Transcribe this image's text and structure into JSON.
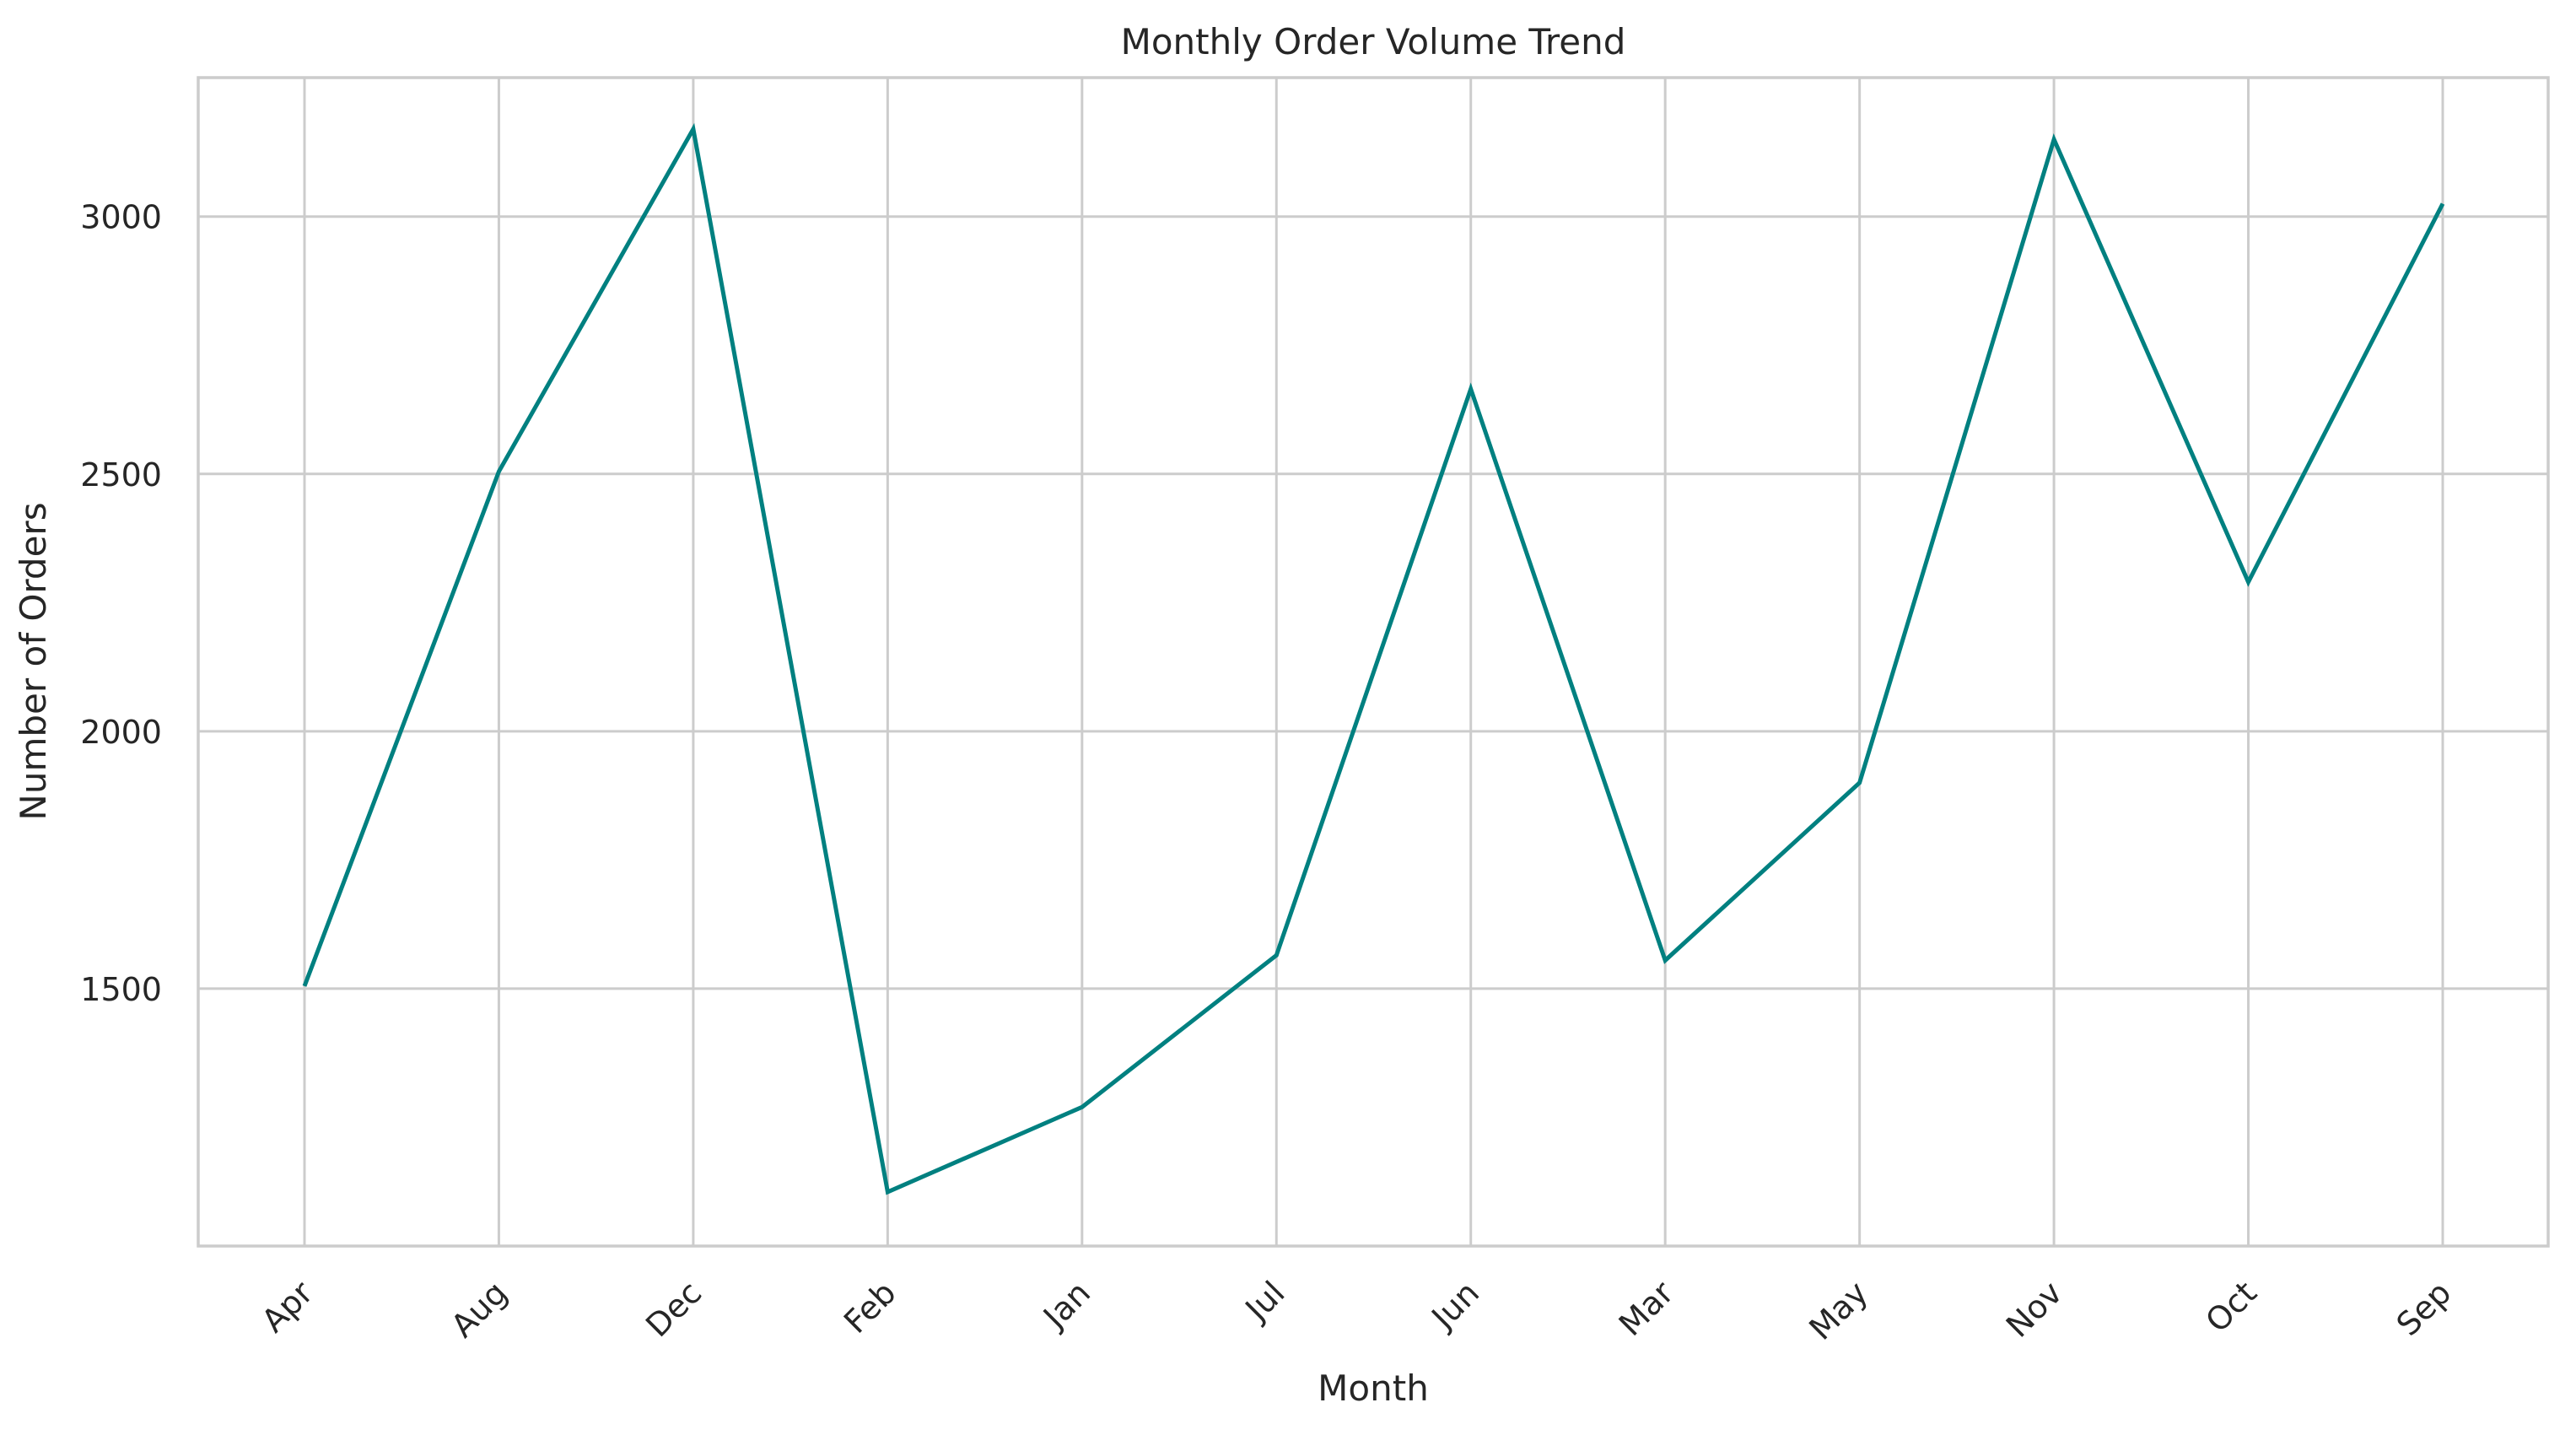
{
  "chart_data": {
    "type": "line",
    "title": "Monthly Order Volume Trend",
    "xlabel": "Month",
    "ylabel": "Number of Orders",
    "categories": [
      "Apr",
      "Aug",
      "Dec",
      "Feb",
      "Jan",
      "Jul",
      "Jun",
      "Mar",
      "May",
      "Nov",
      "Oct",
      "Sep"
    ],
    "series": [
      {
        "values": [
          1505,
          2505,
          3170,
          1105,
          1270,
          1565,
          2665,
          1555,
          1900,
          3150,
          2290,
          3025
        ],
        "color": "#008080"
      }
    ],
    "yticks": [
      1500,
      2000,
      2500,
      3000
    ],
    "ylim": [
      1000,
      3270
    ],
    "grid": true,
    "legend": "none"
  }
}
